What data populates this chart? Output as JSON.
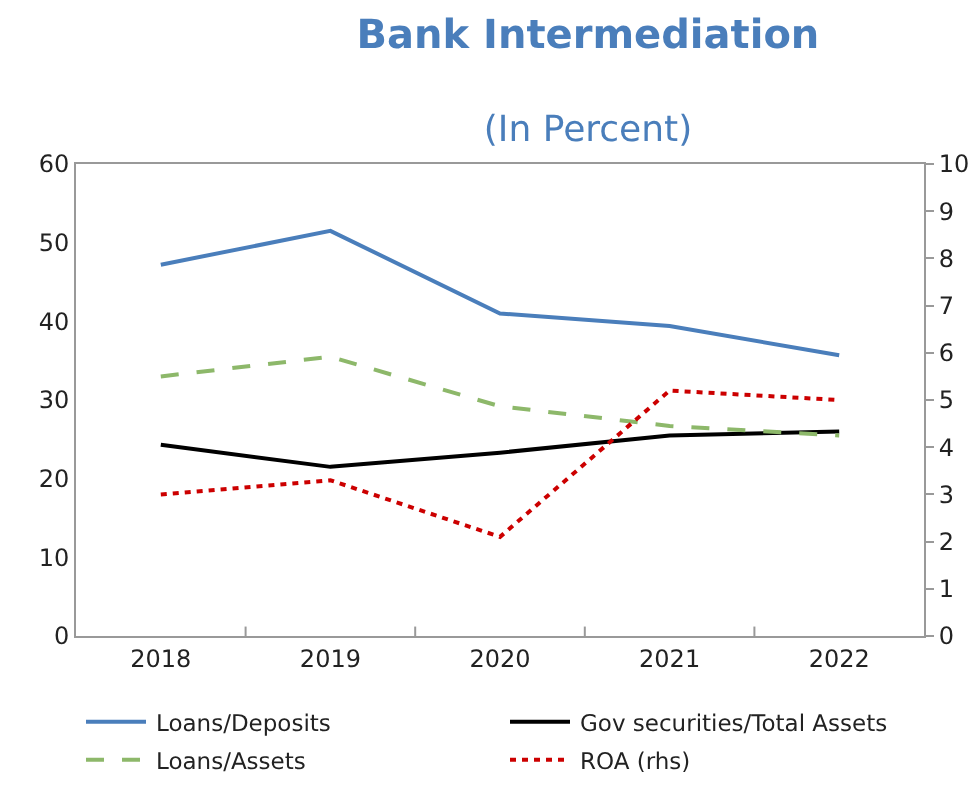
{
  "chart_data": {
    "type": "line",
    "title": "Bank Intermediation",
    "subtitle": "(In Percent)",
    "categories": [
      "2018",
      "2019",
      "2020",
      "2021",
      "2022"
    ],
    "series": [
      {
        "name": "Loans/Deposits",
        "color": "#4a7ebb",
        "values": [
          47.2,
          51.5,
          41,
          39.4,
          35.7
        ]
      },
      {
        "name": "Gov securities/Total Assets",
        "color": "#000000",
        "values": [
          24.3,
          21.5,
          23.3,
          25.5,
          26
        ]
      },
      {
        "name": "Loans/Assets",
        "color": "#8db86a",
        "line_style": "dashed",
        "values": [
          33,
          35.5,
          29.2,
          26.7,
          25.5
        ]
      },
      {
        "name": "ROA (rhs)",
        "color": "#cc0000",
        "line_style": "dotted",
        "axis": "y2",
        "values": [
          3.0,
          3.3,
          2.1,
          5.2,
          5.0
        ]
      }
    ],
    "ylim": [
      0,
      60
    ],
    "yticks": [
      0,
      10,
      20,
      30,
      40,
      50,
      60
    ],
    "y2lim": [
      0,
      10
    ],
    "y2ticks": [
      0,
      1,
      2,
      3,
      4,
      5,
      6,
      7,
      8,
      9,
      10
    ],
    "grid": false,
    "legend": "bottom",
    "marker": "none",
    "line_style": "solid"
  }
}
